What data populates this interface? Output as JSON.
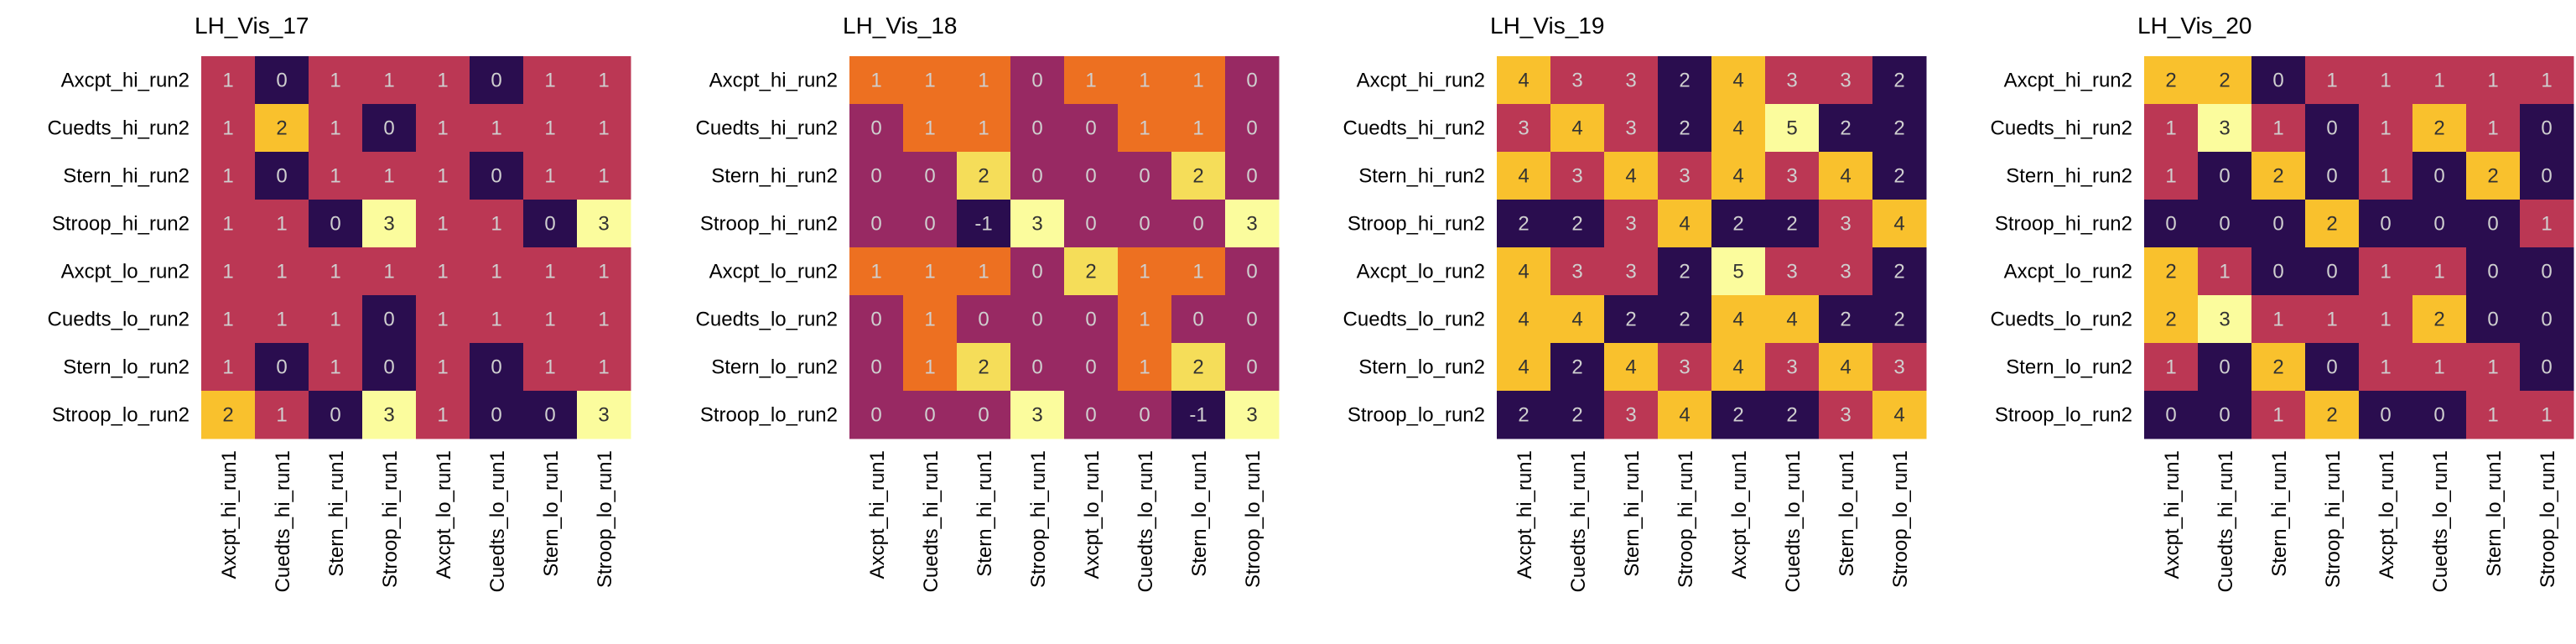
{
  "chart_data": [
    {
      "type": "heatmap",
      "title": "LH_Vis_17",
      "rows": [
        "Axcpt_hi_run2",
        "Cuedts_hi_run2",
        "Stern_hi_run2",
        "Stroop_hi_run2",
        "Axcpt_lo_run2",
        "Cuedts_lo_run2",
        "Stern_lo_run2",
        "Stroop_lo_run2"
      ],
      "columns": [
        "Axcpt_hi_run1",
        "Cuedts_hi_run1",
        "Stern_hi_run1",
        "Stroop_hi_run1",
        "Axcpt_lo_run1",
        "Cuedts_lo_run1",
        "Stern_lo_run1",
        "Stroop_lo_run1"
      ],
      "values": [
        [
          1,
          0,
          1,
          1,
          1,
          0,
          1,
          1
        ],
        [
          1,
          2,
          1,
          0,
          1,
          1,
          1,
          1
        ],
        [
          1,
          0,
          1,
          1,
          1,
          0,
          1,
          1
        ],
        [
          1,
          1,
          0,
          3,
          1,
          1,
          0,
          3
        ],
        [
          1,
          1,
          1,
          1,
          1,
          1,
          1,
          1
        ],
        [
          1,
          1,
          1,
          0,
          1,
          1,
          1,
          1
        ],
        [
          1,
          0,
          1,
          0,
          1,
          0,
          1,
          1
        ],
        [
          2,
          1,
          0,
          3,
          1,
          0,
          0,
          3
        ]
      ],
      "color_range": [
        0,
        3
      ],
      "colormap": "inferno"
    },
    {
      "type": "heatmap",
      "title": "LH_Vis_18",
      "rows": [
        "Axcpt_hi_run2",
        "Cuedts_hi_run2",
        "Stern_hi_run2",
        "Stroop_hi_run2",
        "Axcpt_lo_run2",
        "Cuedts_lo_run2",
        "Stern_lo_run2",
        "Stroop_lo_run2"
      ],
      "columns": [
        "Axcpt_hi_run1",
        "Cuedts_hi_run1",
        "Stern_hi_run1",
        "Stroop_hi_run1",
        "Axcpt_lo_run1",
        "Cuedts_lo_run1",
        "Stern_lo_run1",
        "Stroop_lo_run1"
      ],
      "values": [
        [
          1,
          1,
          1,
          0,
          1,
          1,
          1,
          0
        ],
        [
          0,
          1,
          1,
          0,
          0,
          1,
          1,
          0
        ],
        [
          0,
          0,
          2,
          0,
          0,
          0,
          2,
          0
        ],
        [
          0,
          0,
          -1,
          3,
          0,
          0,
          0,
          3
        ],
        [
          1,
          1,
          1,
          0,
          2,
          1,
          1,
          0
        ],
        [
          0,
          1,
          0,
          0,
          0,
          1,
          0,
          0
        ],
        [
          0,
          1,
          2,
          0,
          0,
          1,
          2,
          0
        ],
        [
          0,
          0,
          0,
          3,
          0,
          0,
          -1,
          3
        ]
      ],
      "color_range": [
        -1,
        3
      ],
      "colormap": "inferno"
    },
    {
      "type": "heatmap",
      "title": "LH_Vis_19",
      "rows": [
        "Axcpt_hi_run2",
        "Cuedts_hi_run2",
        "Stern_hi_run2",
        "Stroop_hi_run2",
        "Axcpt_lo_run2",
        "Cuedts_lo_run2",
        "Stern_lo_run2",
        "Stroop_lo_run2"
      ],
      "columns": [
        "Axcpt_hi_run1",
        "Cuedts_hi_run1",
        "Stern_hi_run1",
        "Stroop_hi_run1",
        "Axcpt_lo_run1",
        "Cuedts_lo_run1",
        "Stern_lo_run1",
        "Stroop_lo_run1"
      ],
      "values": [
        [
          4,
          3,
          3,
          2,
          4,
          3,
          3,
          2
        ],
        [
          3,
          4,
          3,
          2,
          4,
          5,
          2,
          2
        ],
        [
          4,
          3,
          4,
          3,
          4,
          3,
          4,
          2
        ],
        [
          2,
          2,
          3,
          4,
          2,
          2,
          3,
          4
        ],
        [
          4,
          3,
          3,
          2,
          5,
          3,
          3,
          2
        ],
        [
          4,
          4,
          2,
          2,
          4,
          4,
          2,
          2
        ],
        [
          4,
          2,
          4,
          3,
          4,
          3,
          4,
          3
        ],
        [
          2,
          2,
          3,
          4,
          2,
          2,
          3,
          4
        ]
      ],
      "color_range": [
        2,
        5
      ],
      "colormap": "inferno"
    },
    {
      "type": "heatmap",
      "title": "LH_Vis_20",
      "rows": [
        "Axcpt_hi_run2",
        "Cuedts_hi_run2",
        "Stern_hi_run2",
        "Stroop_hi_run2",
        "Axcpt_lo_run2",
        "Cuedts_lo_run2",
        "Stern_lo_run2",
        "Stroop_lo_run2"
      ],
      "columns": [
        "Axcpt_hi_run1",
        "Cuedts_hi_run1",
        "Stern_hi_run1",
        "Stroop_hi_run1",
        "Axcpt_lo_run1",
        "Cuedts_lo_run1",
        "Stern_lo_run1",
        "Stroop_lo_run1"
      ],
      "values": [
        [
          2,
          2,
          0,
          1,
          1,
          1,
          1,
          1
        ],
        [
          1,
          3,
          1,
          0,
          1,
          2,
          1,
          0
        ],
        [
          1,
          0,
          2,
          0,
          1,
          0,
          2,
          0
        ],
        [
          0,
          0,
          0,
          2,
          0,
          0,
          0,
          1
        ],
        [
          2,
          1,
          0,
          0,
          1,
          1,
          0,
          0
        ],
        [
          2,
          3,
          1,
          1,
          1,
          2,
          0,
          0
        ],
        [
          1,
          0,
          2,
          0,
          1,
          1,
          1,
          0
        ],
        [
          0,
          0,
          1,
          2,
          0,
          0,
          1,
          1
        ]
      ],
      "color_range": [
        0,
        3
      ],
      "colormap": "inferno"
    }
  ]
}
